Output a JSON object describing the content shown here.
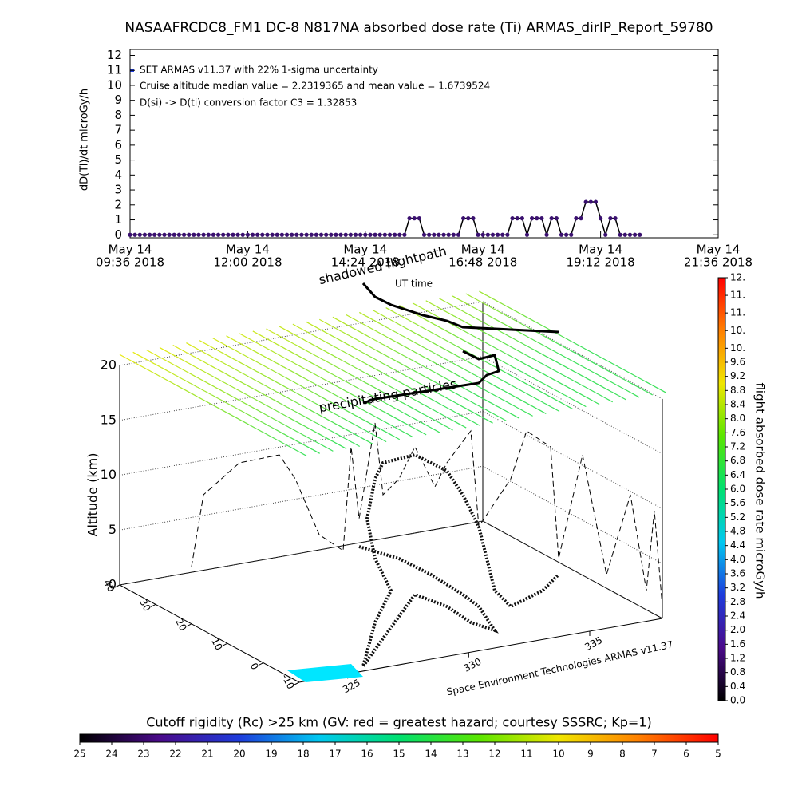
{
  "chart_data": [
    {
      "type": "line",
      "title": "NASAAFRCDC8_FM1 DC-8   N817NA absorbed dose rate (Ti) ARMAS_dirIP_Report_59780",
      "y_label": "dD(Ti)/dt microGy/h",
      "annotations": [
        "Cruise altitude median value = 2.2319365 and mean value = 1.6739524",
        "D(si) -> D(ti) conversion factor C3 = 1.32853"
      ],
      "x": [
        9.6,
        9.7,
        9.8,
        9.9,
        10.0,
        10.1,
        10.2,
        10.3,
        10.4,
        10.5,
        10.6,
        10.7,
        10.8,
        10.9,
        11.0,
        11.1,
        11.2,
        11.3,
        11.4,
        11.5,
        11.6,
        11.7,
        11.8,
        11.9,
        12.0,
        12.1,
        12.2,
        12.3,
        12.4,
        12.5,
        12.6,
        12.7,
        12.8,
        12.9,
        13.0,
        13.1,
        13.2,
        13.3,
        13.4,
        13.5,
        13.6,
        13.7,
        13.8,
        13.9,
        14.0,
        14.1,
        14.2,
        14.3,
        14.4,
        14.5,
        14.6,
        14.7,
        14.8,
        14.9,
        15.0,
        15.1,
        15.2,
        15.3,
        15.4,
        15.5,
        15.6,
        15.7,
        15.8,
        15.9,
        16.0,
        16.1,
        16.2,
        16.3,
        16.4,
        16.5,
        16.6,
        16.7,
        16.8,
        16.9,
        17.0,
        17.1,
        17.2,
        17.3,
        17.4,
        17.5,
        17.6,
        17.7,
        17.8,
        17.9,
        18.0,
        18.1,
        18.2,
        18.3,
        18.4,
        18.5,
        18.6,
        18.7,
        18.8,
        18.9,
        19.0,
        19.1,
        19.2,
        19.3,
        19.4,
        19.5,
        19.6,
        19.7,
        19.8,
        19.9,
        20.0
      ],
      "series": [
        {
          "name": "SET ARMAS v11.37 with 22% 1-sigma uncertainty",
          "color": "#3a1070",
          "legend_color": "#1e3cdc",
          "values": [
            0,
            0,
            0,
            0,
            0,
            0,
            0,
            0,
            0,
            0,
            0,
            0,
            0,
            0,
            0,
            0,
            0,
            0,
            0,
            0,
            0,
            0,
            0,
            0,
            0,
            0,
            0,
            0,
            0,
            0,
            0,
            0,
            0,
            0,
            0,
            0,
            0,
            0,
            0,
            0,
            0,
            0,
            0,
            0,
            0,
            0,
            0,
            0,
            0,
            0,
            0,
            0,
            0,
            0,
            0,
            0,
            0,
            1.1,
            1.1,
            1.1,
            0,
            0,
            0,
            0,
            0,
            0,
            0,
            0,
            1.1,
            1.1,
            1.1,
            0,
            0,
            0,
            0,
            0,
            0,
            0,
            1.1,
            1.1,
            1.1,
            0,
            1.1,
            1.1,
            1.1,
            0,
            1.1,
            1.1,
            0,
            0,
            0,
            1.1,
            1.1,
            2.2,
            2.2,
            2.2,
            1.1,
            0,
            1.1,
            1.1,
            0,
            0,
            0,
            0,
            0
          ]
        }
      ],
      "xlim": [
        9.6,
        21.6
      ],
      "xticks": [
        {
          "value": 9.6,
          "label": [
            "May 14",
            "09:36 2018"
          ]
        },
        {
          "value": 12.0,
          "label": [
            "May 14",
            "12:00 2018"
          ]
        },
        {
          "value": 14.4,
          "label": [
            "May 14",
            "14:24 2018"
          ]
        },
        {
          "value": 16.8,
          "label": [
            "May 14",
            "16:48 2018"
          ]
        },
        {
          "value": 19.2,
          "label": [
            "May 14",
            "19:12 2018"
          ]
        },
        {
          "value": 21.6,
          "label": [
            "May 14",
            "21:36 2018"
          ]
        }
      ],
      "ylim": [
        -0.2,
        12.4
      ],
      "yticks": [
        0,
        1,
        2,
        3,
        4,
        5,
        6,
        7,
        8,
        9,
        10,
        11,
        12
      ]
    },
    {
      "type": "surface3d",
      "z_label": "Altitude (km)",
      "annotations": [
        "shadowed flightpath",
        "UT time",
        "precipitating particles",
        "Space Environment Technologies ARMAS v11.37"
      ],
      "zlim": [
        0,
        20
      ],
      "zticks": [
        0,
        5,
        10,
        15,
        20
      ],
      "ylim": [
        -10,
        40
      ],
      "yticks": [
        -10,
        0,
        10,
        20,
        30,
        40
      ],
      "xlim": [
        323,
        338
      ],
      "xticks": [
        325,
        330,
        335
      ]
    },
    {
      "type": "colorbar",
      "orientation": "vertical",
      "label": "flight absorbed dose rate microGy/h",
      "colors": [
        "#000000",
        "#4a0a8a",
        "#1e3cdc",
        "#00c8f0",
        "#00e070",
        "#5ae600",
        "#f0e600",
        "#ff8000",
        "#ff0000"
      ],
      "lim": [
        0,
        12
      ],
      "ticks": [
        {
          "value": 0,
          "label": "0.0"
        },
        0.4,
        0.8,
        1.2,
        1.6,
        {
          "value": 2,
          "label": "2.0"
        },
        2.4,
        2.8,
        3.2,
        3.6,
        {
          "value": 4,
          "label": "4.0"
        },
        4.4,
        4.8,
        5.2,
        5.6,
        {
          "value": 6,
          "label": "6.0"
        },
        6.4,
        6.8,
        7.2,
        7.6,
        {
          "value": 8,
          "label": "8.0"
        },
        8.4,
        8.8,
        9.2,
        9.6,
        {
          "value": 10,
          "label": "10."
        },
        {
          "value": 10.5,
          "label": "10."
        },
        {
          "value": 11,
          "label": "11."
        },
        {
          "value": 11.5,
          "label": "11."
        },
        {
          "value": 12,
          "label": "12."
        }
      ]
    },
    {
      "type": "colorbar",
      "orientation": "horizontal",
      "label": "Cutoff rigidity (Rc) >25 km (GV: red = greatest hazard; courtesy SSSRC; Kp=1)",
      "colors": [
        "#000000",
        "#4a0a8a",
        "#1e3cdc",
        "#00c8f0",
        "#00e070",
        "#5ae600",
        "#f0e600",
        "#ff8000",
        "#ff0000"
      ],
      "lim": [
        25,
        5
      ],
      "ticks": [
        25,
        24,
        23,
        22,
        21,
        20,
        19,
        18,
        17,
        16,
        15,
        14,
        13,
        12,
        11,
        10,
        9,
        8,
        7,
        6,
        5
      ]
    }
  ]
}
